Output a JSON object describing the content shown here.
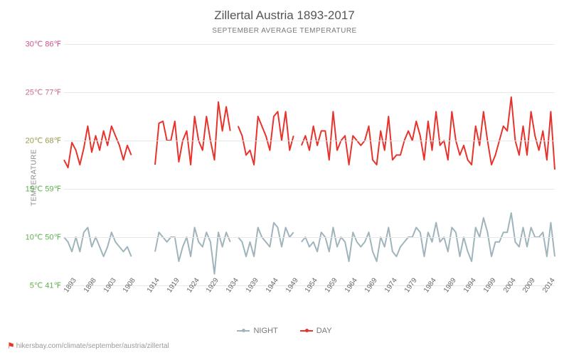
{
  "title": "Zillertal Austria 1893-2017",
  "subtitle": "SEPTEMBER AVERAGE TEMPERATURE",
  "y_axis_label": "TEMPERATURE",
  "footer_url": "hikersbay.com/climate/september/austria/zillertal",
  "plot": {
    "x_start": 1893,
    "x_end": 2017,
    "y_min_c": 5,
    "y_max_c": 30,
    "y_ticks": [
      {
        "c": 5,
        "f": 41,
        "color": "#5fb04f"
      },
      {
        "c": 10,
        "f": 50,
        "color": "#5fb04f"
      },
      {
        "c": 15,
        "f": 59,
        "color": "#5fb04f"
      },
      {
        "c": 20,
        "f": 68,
        "color": "#9a9a4a"
      },
      {
        "c": 25,
        "f": 77,
        "color": "#c96a92"
      },
      {
        "c": 30,
        "f": 86,
        "color": "#d05090"
      }
    ],
    "x_ticks": [
      1893,
      1898,
      1903,
      1908,
      1914,
      1919,
      1924,
      1929,
      1934,
      1939,
      1944,
      1949,
      1954,
      1959,
      1964,
      1969,
      1974,
      1979,
      1984,
      1989,
      1994,
      1999,
      2004,
      2009,
      2014
    ],
    "grid_color": "#e8e8e8",
    "background_color": "#ffffff"
  },
  "series": {
    "day": {
      "label": "DAY",
      "color": "#e8332d",
      "line_width": 2,
      "years": [
        1893,
        1894,
        1895,
        1896,
        1897,
        1898,
        1899,
        1900,
        1901,
        1902,
        1903,
        1904,
        1905,
        1906,
        1907,
        1908,
        1909,
        1910,
        1916,
        1917,
        1918,
        1919,
        1920,
        1921,
        1922,
        1923,
        1924,
        1925,
        1926,
        1927,
        1928,
        1929,
        1930,
        1931,
        1932,
        1933,
        1934,
        1935,
        1937,
        1938,
        1939,
        1940,
        1941,
        1942,
        1943,
        1944,
        1945,
        1946,
        1947,
        1948,
        1949,
        1950,
        1951,
        1953,
        1954,
        1955,
        1956,
        1957,
        1958,
        1959,
        1960,
        1961,
        1962,
        1963,
        1964,
        1965,
        1966,
        1967,
        1968,
        1969,
        1970,
        1971,
        1972,
        1973,
        1974,
        1975,
        1976,
        1977,
        1978,
        1979,
        1980,
        1981,
        1982,
        1983,
        1984,
        1985,
        1986,
        1987,
        1988,
        1989,
        1990,
        1991,
        1992,
        1993,
        1994,
        1995,
        1996,
        1997,
        1998,
        1999,
        2000,
        2001,
        2002,
        2003,
        2004,
        2005,
        2006,
        2007,
        2008,
        2009,
        2010,
        2011,
        2012,
        2013,
        2014,
        2015,
        2016,
        2017
      ],
      "values": [
        18.0,
        17.2,
        19.8,
        19.0,
        17.5,
        19.2,
        21.5,
        18.8,
        20.5,
        19.0,
        21.0,
        19.5,
        21.5,
        20.5,
        19.5,
        18.0,
        19.5,
        18.5,
        17.5,
        21.8,
        22.0,
        20.0,
        20.0,
        22.0,
        17.8,
        20.0,
        21.0,
        17.5,
        22.5,
        20.0,
        19.0,
        22.5,
        20.0,
        18.0,
        24.0,
        21.0,
        23.5,
        21.0,
        21.5,
        20.5,
        18.5,
        19.0,
        17.5,
        22.5,
        21.5,
        20.5,
        19.0,
        22.5,
        23.0,
        20.0,
        23.0,
        19.0,
        20.5,
        19.5,
        20.5,
        19.0,
        21.5,
        19.5,
        21.0,
        21.0,
        18.0,
        23.0,
        19.0,
        20.0,
        20.5,
        17.5,
        20.5,
        20.0,
        19.5,
        20.0,
        21.5,
        18.0,
        17.5,
        21.0,
        19.0,
        22.5,
        18.0,
        18.5,
        18.5,
        20.0,
        21.0,
        20.0,
        22.0,
        20.5,
        18.0,
        22.0,
        19.0,
        23.0,
        19.5,
        20.0,
        18.0,
        23.0,
        20.0,
        18.5,
        19.5,
        18.0,
        17.5,
        21.5,
        19.5,
        23.0,
        20.0,
        17.5,
        18.5,
        20.0,
        21.5,
        21.0,
        24.5,
        20.0,
        18.5,
        21.5,
        18.5,
        23.0,
        20.5,
        19.0,
        21.0,
        18.0,
        23.0,
        17.0
      ]
    },
    "night": {
      "label": "NIGHT",
      "color": "#9fb4bb",
      "line_width": 2,
      "years": [
        1893,
        1894,
        1895,
        1896,
        1897,
        1898,
        1899,
        1900,
        1901,
        1902,
        1903,
        1904,
        1905,
        1906,
        1907,
        1908,
        1909,
        1910,
        1916,
        1917,
        1918,
        1919,
        1920,
        1921,
        1922,
        1923,
        1924,
        1925,
        1926,
        1927,
        1928,
        1929,
        1930,
        1931,
        1932,
        1933,
        1934,
        1935,
        1937,
        1938,
        1939,
        1940,
        1941,
        1942,
        1943,
        1944,
        1945,
        1946,
        1947,
        1948,
        1949,
        1950,
        1951,
        1953,
        1954,
        1955,
        1956,
        1957,
        1958,
        1959,
        1960,
        1961,
        1962,
        1963,
        1964,
        1965,
        1966,
        1967,
        1968,
        1969,
        1970,
        1971,
        1972,
        1973,
        1974,
        1975,
        1976,
        1977,
        1978,
        1979,
        1980,
        1981,
        1982,
        1983,
        1984,
        1985,
        1986,
        1987,
        1988,
        1989,
        1990,
        1991,
        1992,
        1993,
        1994,
        1995,
        1996,
        1997,
        1998,
        1999,
        2000,
        2001,
        2002,
        2003,
        2004,
        2005,
        2006,
        2007,
        2008,
        2009,
        2010,
        2011,
        2012,
        2013,
        2014,
        2015,
        2016,
        2017
      ],
      "values": [
        10.0,
        9.5,
        8.5,
        10.0,
        8.5,
        10.5,
        11.0,
        9.0,
        10.0,
        9.0,
        8.0,
        9.0,
        10.5,
        9.5,
        9.0,
        8.5,
        9.0,
        8.0,
        8.5,
        10.5,
        10.0,
        9.5,
        10.0,
        10.0,
        7.5,
        9.0,
        10.0,
        8.0,
        11.0,
        9.5,
        9.0,
        10.5,
        9.5,
        6.2,
        10.5,
        9.0,
        10.5,
        9.5,
        10.0,
        9.5,
        8.0,
        9.5,
        8.0,
        11.0,
        10.0,
        9.5,
        9.0,
        11.5,
        11.0,
        9.0,
        11.0,
        10.0,
        10.5,
        9.5,
        10.0,
        9.0,
        9.5,
        8.5,
        10.5,
        10.0,
        8.5,
        11.0,
        9.0,
        10.0,
        9.5,
        7.5,
        10.5,
        9.5,
        9.0,
        9.5,
        10.5,
        8.5,
        7.5,
        10.0,
        9.0,
        11.0,
        8.5,
        8.0,
        9.0,
        9.5,
        10.0,
        10.0,
        11.0,
        10.5,
        8.0,
        10.5,
        9.5,
        11.5,
        9.5,
        10.0,
        8.5,
        11.0,
        10.5,
        8.0,
        10.0,
        8.5,
        7.5,
        11.0,
        10.0,
        12.0,
        10.5,
        8.0,
        9.5,
        9.5,
        10.5,
        10.5,
        12.5,
        9.5,
        9.0,
        11.0,
        9.0,
        11.0,
        10.0,
        10.0,
        10.5,
        8.0,
        11.5,
        8.0
      ]
    }
  },
  "legend": {
    "night_label": "NIGHT",
    "day_label": "DAY"
  }
}
